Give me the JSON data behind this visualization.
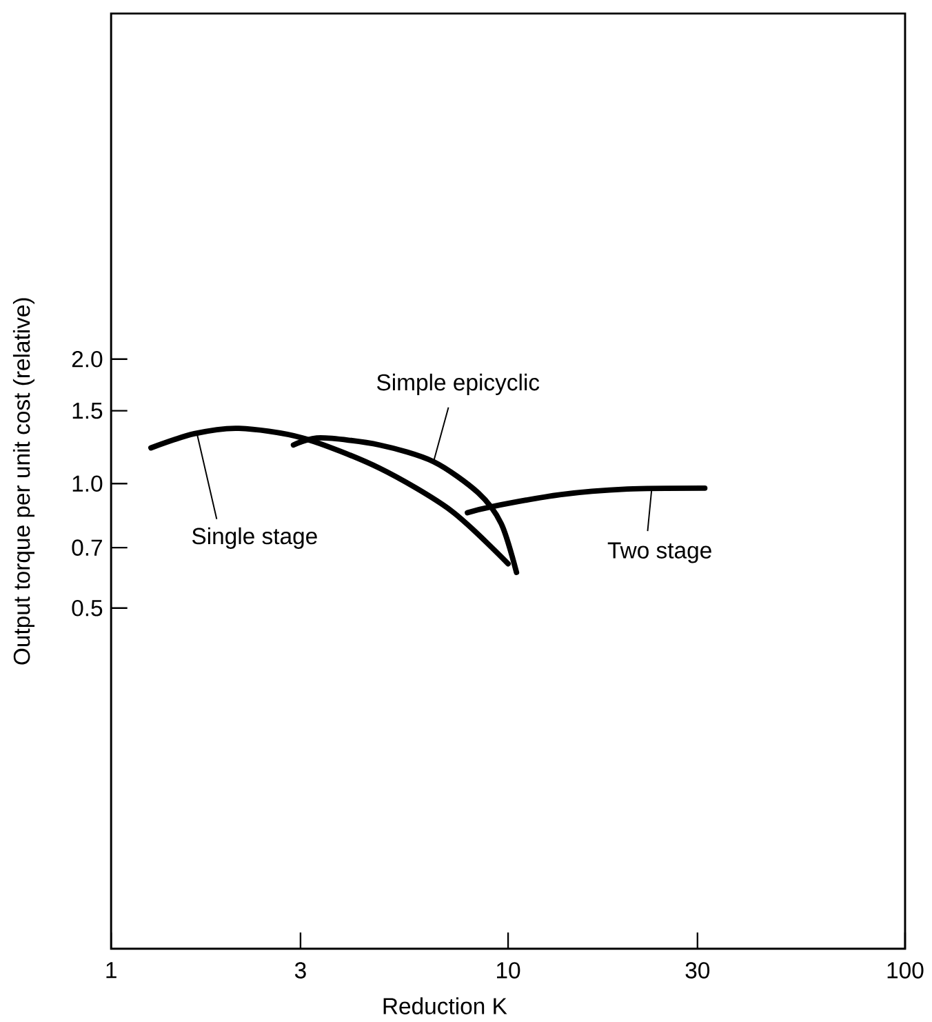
{
  "chart_data": {
    "type": "line",
    "xlabel": "Reduction K",
    "ylabel": "Output torque per unit cost (relative)",
    "log": "xy",
    "xlim": [
      1,
      100
    ],
    "ylim": [
      0.075,
      13.7
    ],
    "xticks": [
      1,
      3,
      10,
      30,
      100
    ],
    "yticks": [
      {
        "value": 0.5,
        "label": "0.5"
      },
      {
        "value": 0.7,
        "label": "0.7"
      },
      {
        "value": 1,
        "label": "1.0"
      },
      {
        "value": 1.5,
        "label": "1.5"
      },
      {
        "value": 2,
        "label": "2.0"
      }
    ],
    "series": [
      {
        "color": "#000000",
        "x": [
          1.26,
          1.62,
          2.1,
          3.03,
          4.74,
          7.19,
          10.0
        ],
        "values": [
          1.22,
          1.32,
          1.36,
          1.29,
          1.09,
          0.86,
          0.64
        ]
      },
      {
        "color": "#000000",
        "x": [
          2.88,
          3.37,
          4.74,
          6.49,
          8.41,
          9.61,
          10.5
        ],
        "values": [
          1.24,
          1.29,
          1.24,
          1.13,
          0.95,
          0.8,
          0.61
        ]
      },
      {
        "color": "#000000",
        "x": [
          7.9,
          9.12,
          13.5,
          20.0,
          31.3
        ],
        "values": [
          0.85,
          0.88,
          0.94,
          0.97,
          0.975
        ]
      }
    ],
    "annotations": [
      {
        "text": "Simple epicyclic",
        "x": 6.49,
        "y": 1.13
      },
      {
        "text": "Single stage",
        "x": 1.64,
        "y": 1.34
      },
      {
        "text": "Two stage",
        "x": 23.0,
        "y": 0.97
      }
    ]
  }
}
